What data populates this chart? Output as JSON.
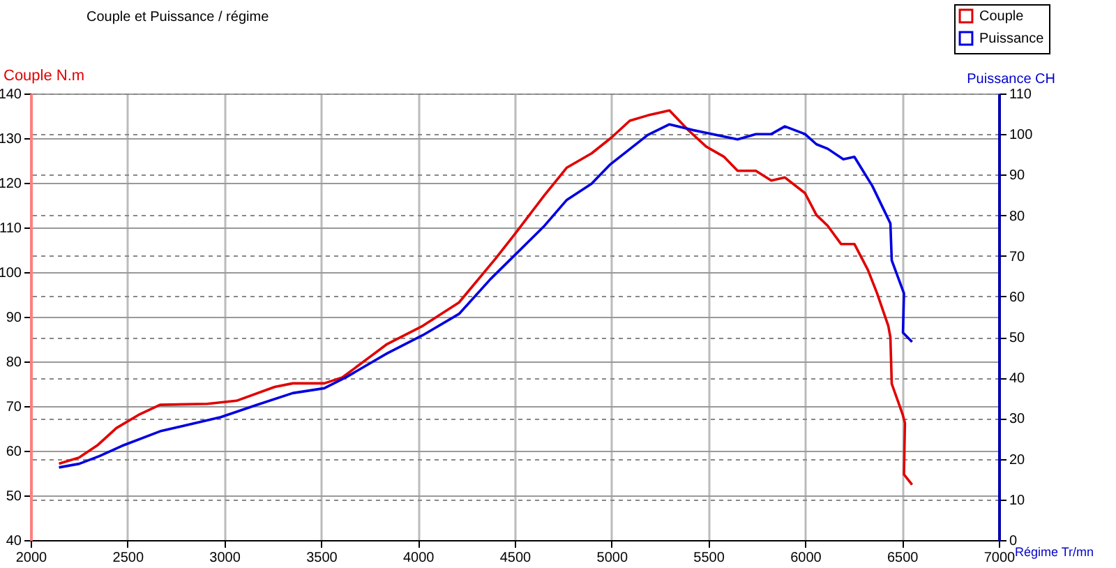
{
  "chart_data": {
    "type": "line",
    "title": "Couple et Puissance / régime",
    "xlabel": "Régime Tr/mn",
    "ylabel": "Couple N.m",
    "y2label": "Puissance CH",
    "xlim": [
      2000,
      7000
    ],
    "xticks": [
      2000,
      2500,
      3000,
      3500,
      4000,
      4500,
      5000,
      5500,
      6000,
      6500,
      7000
    ],
    "ylim": [
      40,
      140
    ],
    "yticks": [
      40,
      50,
      60,
      70,
      80,
      90,
      100,
      110,
      120,
      130,
      140
    ],
    "y2lim": [
      0,
      110
    ],
    "y2ticks": [
      0,
      10,
      20,
      30,
      40,
      50,
      60,
      70,
      80,
      90,
      100,
      110
    ],
    "grid": true,
    "legend": "top right",
    "series": [
      {
        "name": "Couple",
        "color": "#e00000",
        "x": [
          2146,
          2251,
          2344,
          2443,
          2564,
          2668,
          2912,
          3063,
          3260,
          3353,
          3516,
          3609,
          3841,
          4026,
          4212,
          4400,
          4500,
          4653,
          4769,
          4897,
          5001,
          5094,
          5187,
          5299,
          5396,
          5489,
          5582,
          5651,
          5745,
          5825,
          5895,
          5999,
          6058,
          6116,
          6185,
          6254,
          6324,
          6371,
          6429,
          6440,
          6447,
          6503,
          6515,
          6510,
          6552
        ],
        "values": [
          57.1,
          58.5,
          61.2,
          65.1,
          68.2,
          70.3,
          70.5,
          71.2,
          74.3,
          75.1,
          75.1,
          76.4,
          83.9,
          88.0,
          93.2,
          103,
          108.5,
          117.2,
          123.4,
          126.6,
          130.2,
          133.9,
          135.1,
          136.2,
          131.8,
          128.1,
          125.8,
          122.7,
          122.7,
          120.5,
          121.2,
          117.7,
          112.8,
          110.4,
          106.3,
          106.3,
          100.5,
          95.3,
          88.0,
          85.4,
          75.0,
          68.2,
          66.2,
          54.7,
          52.4
        ]
      },
      {
        "name": "Puissance",
        "color": "#0000e0",
        "axis": "y2",
        "x": [
          2146,
          2251,
          2355,
          2471,
          2668,
          2982,
          3168,
          3353,
          3516,
          3632,
          3841,
          4026,
          4212,
          4375,
          4653,
          4769,
          4897,
          4990,
          5187,
          5299,
          5419,
          5651,
          5745,
          5825,
          5895,
          5999,
          6058,
          6116,
          6197,
          6254,
          6347,
          6440,
          6447,
          6510,
          6505,
          6552
        ],
        "values": [
          17.9,
          18.8,
          20.7,
          23.2,
          26.8,
          30.3,
          33.3,
          36.2,
          37.4,
          40.2,
          46.0,
          50.5,
          55.7,
          64.3,
          77.4,
          83.8,
          87.8,
          92.4,
          99.8,
          102.4,
          101.0,
          98.7,
          100.0,
          100.0,
          101.9,
          100.0,
          97.5,
          96.4,
          93.8,
          94.4,
          87.2,
          78.0,
          68.9,
          60.8,
          51.1,
          48.8
        ]
      }
    ]
  }
}
